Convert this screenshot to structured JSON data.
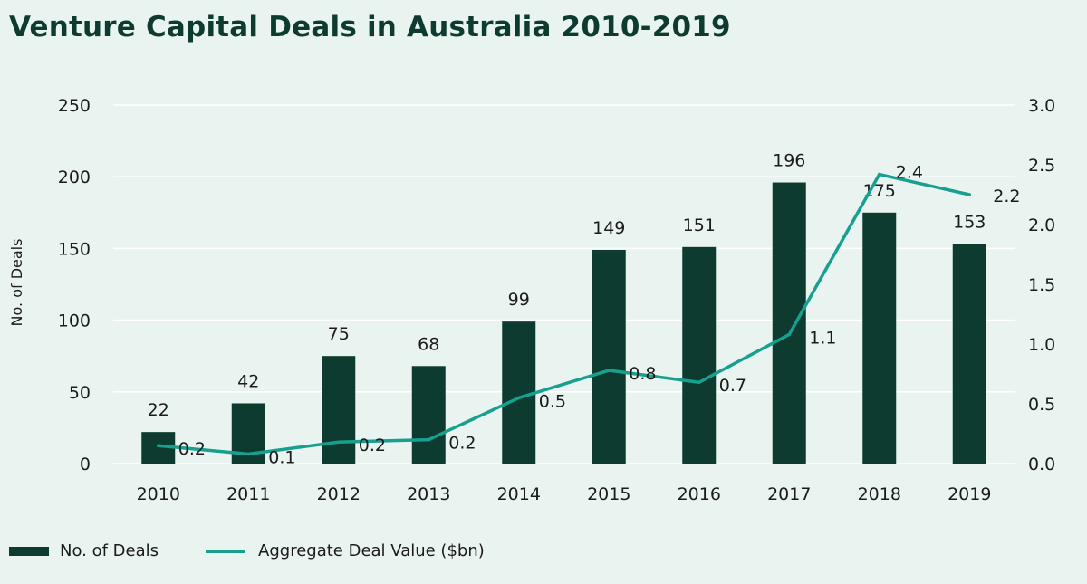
{
  "title": "Venture Capital Deals in Australia 2010-2019",
  "colors": {
    "bar": "#0d3b30",
    "line": "#17a08f",
    "grid": "#ffffff",
    "background": "#e9f4f1"
  },
  "chart_data": {
    "type": "bar",
    "title": "Venture Capital Deals in Australia 2010-2019",
    "categories": [
      "2010",
      "2011",
      "2012",
      "2013",
      "2014",
      "2015",
      "2016",
      "2017",
      "2018",
      "2019"
    ],
    "series": [
      {
        "name": "No. of Deals",
        "type": "bar",
        "axis": "left",
        "values": [
          22,
          42,
          75,
          68,
          99,
          149,
          151,
          196,
          175,
          153
        ],
        "labels": [
          "22",
          "42",
          "75",
          "68",
          "99",
          "149",
          "151",
          "196",
          "175",
          "153"
        ]
      },
      {
        "name": "Aggregate Deal Value ($bn)",
        "type": "line",
        "axis": "right",
        "values": [
          0.15,
          0.08,
          0.18,
          0.2,
          0.55,
          0.78,
          0.68,
          1.08,
          2.42,
          2.25
        ],
        "labels": [
          "0.2",
          "0.1",
          "0.2",
          "0.2",
          "0.5",
          "0.8",
          "0.7",
          "1.1",
          "2.4",
          "2.2"
        ]
      }
    ],
    "ylabel": "No. of Deals",
    "ylim": [
      0,
      250
    ],
    "yticks": [
      "0",
      "50",
      "100",
      "150",
      "200",
      "250"
    ],
    "y2lim": [
      0,
      3.0
    ],
    "y2ticks": [
      "0.0",
      "0.5",
      "1.0",
      "1.5",
      "2.0",
      "2.5",
      "3.0"
    ],
    "grid": true,
    "legend_position": "bottom-left"
  }
}
